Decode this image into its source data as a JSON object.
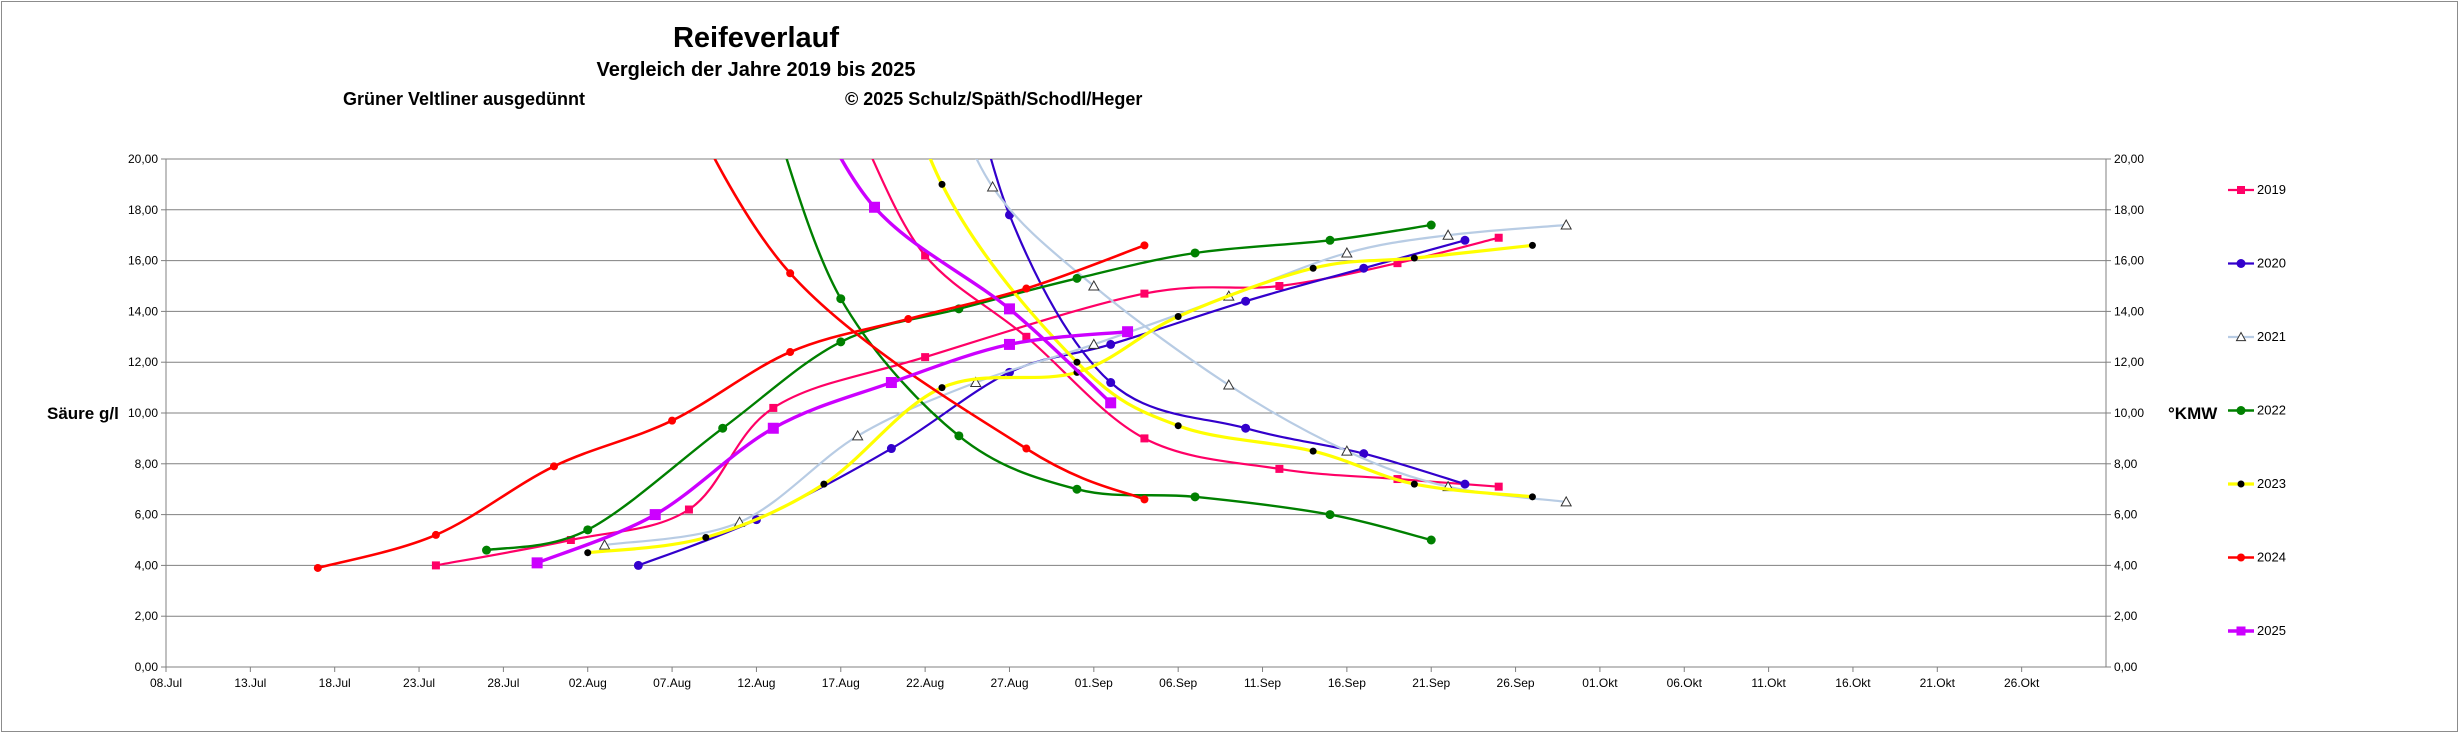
{
  "chart_data": {
    "type": "line",
    "title": "Reifeverlauf",
    "subtitle": "Vergleich der Jahre 2019 bis 2025",
    "notes": [
      "Grüner Veltliner ausgedünnt",
      "© 2025  Schulz/Späth/Schodl/Heger"
    ],
    "ylabel_left": "Säure g/l",
    "ylabel_right": "°KMW",
    "xlim": [
      "2000-07-08",
      "2000-10-31"
    ],
    "ylim": [
      0,
      20
    ],
    "grid": true,
    "legend_position": "right",
    "x_tick_labels": [
      "08.Jul",
      "13.Jul",
      "18.Jul",
      "23.Jul",
      "28.Jul",
      "02.Aug",
      "07.Aug",
      "12.Aug",
      "17.Aug",
      "22.Aug",
      "27.Aug",
      "01.Sep",
      "06.Sep",
      "11.Sep",
      "16.Sep",
      "21.Sep",
      "26.Sep",
      "01.Okt",
      "06.Okt",
      "11.Okt",
      "16.Okt",
      "21.Okt",
      "26.Okt"
    ],
    "x_tick_dates": [
      "2000-07-08",
      "2000-07-13",
      "2000-07-18",
      "2000-07-23",
      "2000-07-28",
      "2000-08-02",
      "2000-08-07",
      "2000-08-12",
      "2000-08-17",
      "2000-08-22",
      "2000-08-27",
      "2000-09-01",
      "2000-09-06",
      "2000-09-11",
      "2000-09-16",
      "2000-09-21",
      "2000-09-26",
      "2000-10-01",
      "2000-10-06",
      "2000-10-11",
      "2000-10-16",
      "2000-10-21",
      "2000-10-26"
    ],
    "y_tick_labels": [
      "0,00",
      "2,00",
      "4,00",
      "6,00",
      "8,00",
      "10,00",
      "12,00",
      "14,00",
      "16,00",
      "18,00",
      "20,00"
    ],
    "y_tick_values": [
      0,
      2,
      4,
      6,
      8,
      10,
      12,
      14,
      16,
      18,
      20
    ],
    "series": [
      {
        "name": "2019",
        "color": "#ff0066",
        "width": 2.2,
        "marker": "square",
        "msize": 4,
        "kmw": [
          [
            "2000-07-24",
            4.0
          ],
          [
            "2000-08-01",
            5.0
          ],
          [
            "2000-08-08",
            6.2
          ],
          [
            "2000-08-13",
            10.2
          ],
          [
            "2000-08-22",
            12.2
          ],
          [
            "2000-09-04",
            14.7
          ],
          [
            "2000-09-12",
            15.0
          ],
          [
            "2000-09-19",
            15.9
          ],
          [
            "2000-09-25",
            16.9
          ]
        ],
        "acid": [
          [
            "2000-08-22",
            16.2
          ],
          [
            "2000-08-28",
            13.0
          ],
          [
            "2000-09-04",
            9.0
          ],
          [
            "2000-09-12",
            7.8
          ],
          [
            "2000-09-19",
            7.4
          ],
          [
            "2000-09-25",
            7.1
          ]
        ]
      },
      {
        "name": "2020",
        "color": "#3300cc",
        "width": 2.2,
        "marker": "circle",
        "msize": 4.5,
        "kmw": [
          [
            "2000-08-05",
            4.0
          ],
          [
            "2000-08-12",
            5.8
          ],
          [
            "2000-08-20",
            8.6
          ],
          [
            "2000-08-27",
            11.6
          ],
          [
            "2000-09-02",
            12.7
          ],
          [
            "2000-09-10",
            14.4
          ],
          [
            "2000-09-17",
            15.7
          ],
          [
            "2000-09-23",
            16.8
          ]
        ],
        "acid": [
          [
            "2000-08-27",
            17.8
          ],
          [
            "2000-09-02",
            11.2
          ],
          [
            "2000-09-10",
            9.4
          ],
          [
            "2000-09-17",
            8.4
          ],
          [
            "2000-09-23",
            7.2
          ]
        ]
      },
      {
        "name": "2021",
        "color": "#b8cce4",
        "width": 2.2,
        "marker": "triangle",
        "msize": 5,
        "kmw": [
          [
            "2000-08-03",
            4.8
          ],
          [
            "2000-08-11",
            5.7
          ],
          [
            "2000-08-18",
            9.1
          ],
          [
            "2000-08-25",
            11.2
          ],
          [
            "2000-09-01",
            12.7
          ],
          [
            "2000-09-09",
            14.6
          ],
          [
            "2000-09-16",
            16.3
          ],
          [
            "2000-09-22",
            17.0
          ],
          [
            "2000-09-29",
            17.4
          ]
        ],
        "acid": [
          [
            "2000-08-26",
            18.9
          ],
          [
            "2000-09-01",
            15.0
          ],
          [
            "2000-09-09",
            11.1
          ],
          [
            "2000-09-16",
            8.5
          ],
          [
            "2000-09-22",
            7.1
          ],
          [
            "2000-09-29",
            6.5
          ]
        ]
      },
      {
        "name": "2022",
        "color": "#008000",
        "width": 2.4,
        "marker": "circle",
        "msize": 4.5,
        "kmw": [
          [
            "2000-07-27",
            4.6
          ],
          [
            "2000-08-02",
            5.4
          ],
          [
            "2000-08-10",
            9.4
          ],
          [
            "2000-08-17",
            12.8
          ],
          [
            "2000-08-24",
            14.1
          ],
          [
            "2000-08-31",
            15.3
          ],
          [
            "2000-09-07",
            16.3
          ],
          [
            "2000-09-15",
            16.8
          ],
          [
            "2000-09-21",
            17.4
          ]
        ],
        "acid": [
          [
            "2000-08-17",
            14.5
          ],
          [
            "2000-08-24",
            9.1
          ],
          [
            "2000-08-31",
            7.0
          ],
          [
            "2000-09-07",
            6.7
          ],
          [
            "2000-09-15",
            6.0
          ],
          [
            "2000-09-21",
            5.0
          ]
        ]
      },
      {
        "name": "2023",
        "color": "#ffff00",
        "width": 3.2,
        "marker": "circle",
        "msize": 3.5,
        "marker_fill": "#000000",
        "kmw": [
          [
            "2000-08-02",
            4.5
          ],
          [
            "2000-08-09",
            5.1
          ],
          [
            "2000-08-16",
            7.2
          ],
          [
            "2000-08-23",
            11.0
          ],
          [
            "2000-08-31",
            11.6
          ],
          [
            "2000-09-06",
            13.8
          ],
          [
            "2000-09-14",
            15.7
          ],
          [
            "2000-09-20",
            16.1
          ],
          [
            "2000-09-27",
            16.6
          ]
        ],
        "acid": [
          [
            "2000-08-23",
            19.0
          ],
          [
            "2000-08-31",
            12.0
          ],
          [
            "2000-09-06",
            9.5
          ],
          [
            "2000-09-14",
            8.5
          ],
          [
            "2000-09-20",
            7.2
          ],
          [
            "2000-09-27",
            6.7
          ]
        ]
      },
      {
        "name": "2024",
        "color": "#ff0000",
        "width": 2.6,
        "marker": "circle",
        "msize": 4,
        "kmw": [
          [
            "2000-07-17",
            3.9
          ],
          [
            "2000-07-24",
            5.2
          ],
          [
            "2000-07-31",
            7.9
          ],
          [
            "2000-08-07",
            9.7
          ],
          [
            "2000-08-14",
            12.4
          ],
          [
            "2000-08-21",
            13.7
          ],
          [
            "2000-08-28",
            14.9
          ],
          [
            "2000-09-04",
            16.6
          ]
        ],
        "acid": [
          [
            "2000-08-14",
            15.5
          ],
          [
            "2000-08-28",
            8.6
          ],
          [
            "2000-09-04",
            6.6
          ]
        ]
      },
      {
        "name": "2025",
        "color": "#cc00ff",
        "width": 3.4,
        "marker": "square",
        "msize": 5.5,
        "kmw": [
          [
            "2000-07-30",
            4.1
          ],
          [
            "2000-08-06",
            6.0
          ],
          [
            "2000-08-13",
            9.4
          ],
          [
            "2000-08-20",
            11.2
          ],
          [
            "2000-08-27",
            12.7
          ],
          [
            "2000-09-03",
            13.2
          ]
        ],
        "acid": [
          [
            "2000-08-19",
            18.1
          ],
          [
            "2000-08-27",
            14.1
          ],
          [
            "2000-09-02",
            10.4
          ]
        ]
      }
    ]
  }
}
